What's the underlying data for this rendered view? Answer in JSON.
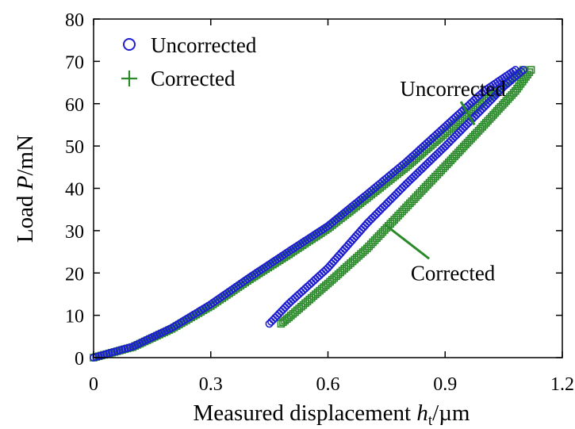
{
  "chart_data": {
    "type": "scatter",
    "title": "",
    "xlabel": {
      "main": "Measured displacement ",
      "var": "h",
      "sub": "t",
      "unit": "/µm"
    },
    "ylabel": {
      "main": "Load ",
      "var": "P",
      "unit": "/mN"
    },
    "xlim": [
      0,
      1.2
    ],
    "ylim": [
      0,
      80
    ],
    "xticks": [
      "0",
      "0.3",
      "0.6",
      "0.9",
      "1.2"
    ],
    "yticks": [
      "0",
      "10",
      "20",
      "30",
      "40",
      "50",
      "60",
      "70",
      "80"
    ],
    "grid": false,
    "legend_position": "top-left",
    "series": [
      {
        "name": "Uncorrected",
        "marker": "circle",
        "color": "#1f1fd0",
        "loading": {
          "x": [
            0,
            0.1,
            0.2,
            0.3,
            0.4,
            0.5,
            0.6,
            0.7,
            0.8,
            0.9,
            1.0,
            1.08
          ],
          "y": [
            0,
            2.6,
            7.0,
            12.6,
            19.0,
            25.1,
            31.1,
            38.6,
            46.2,
            54.6,
            63.0,
            68.0
          ]
        },
        "unloading": {
          "x": [
            1.1,
            1.05,
            1.0,
            0.9,
            0.8,
            0.7,
            0.6,
            0.5,
            0.45
          ],
          "y": [
            68.0,
            64.0,
            59.2,
            49.9,
            41.0,
            31.7,
            21.2,
            12.8,
            8.0
          ]
        }
      },
      {
        "name": "Corrected",
        "marker": "plus",
        "color": "#2a8a2a",
        "loading": {
          "x": [
            0,
            0.1,
            0.2,
            0.3,
            0.4,
            0.5,
            0.6,
            0.7,
            0.8,
            0.9,
            1.0,
            1.1
          ],
          "y": [
            0,
            2.5,
            6.8,
            12.2,
            18.5,
            24.4,
            30.5,
            37.7,
            45.0,
            53.0,
            60.8,
            68.0
          ]
        },
        "unloading": {
          "x": [
            1.12,
            1.08,
            1.0,
            0.9,
            0.8,
            0.7,
            0.6,
            0.5,
            0.48
          ],
          "y": [
            68.0,
            63.0,
            55.0,
            45.2,
            35.5,
            25.8,
            17.5,
            9.5,
            8.0
          ]
        }
      }
    ],
    "annotations": [
      {
        "text": "Uncorrected",
        "x": 0.92,
        "y": 63.5,
        "arrow_to": [
          0.975,
          55.0
        ]
      },
      {
        "text": "Corrected",
        "x": 0.92,
        "y": 20.0,
        "arrow_to": [
          0.745,
          31.5
        ]
      }
    ]
  }
}
